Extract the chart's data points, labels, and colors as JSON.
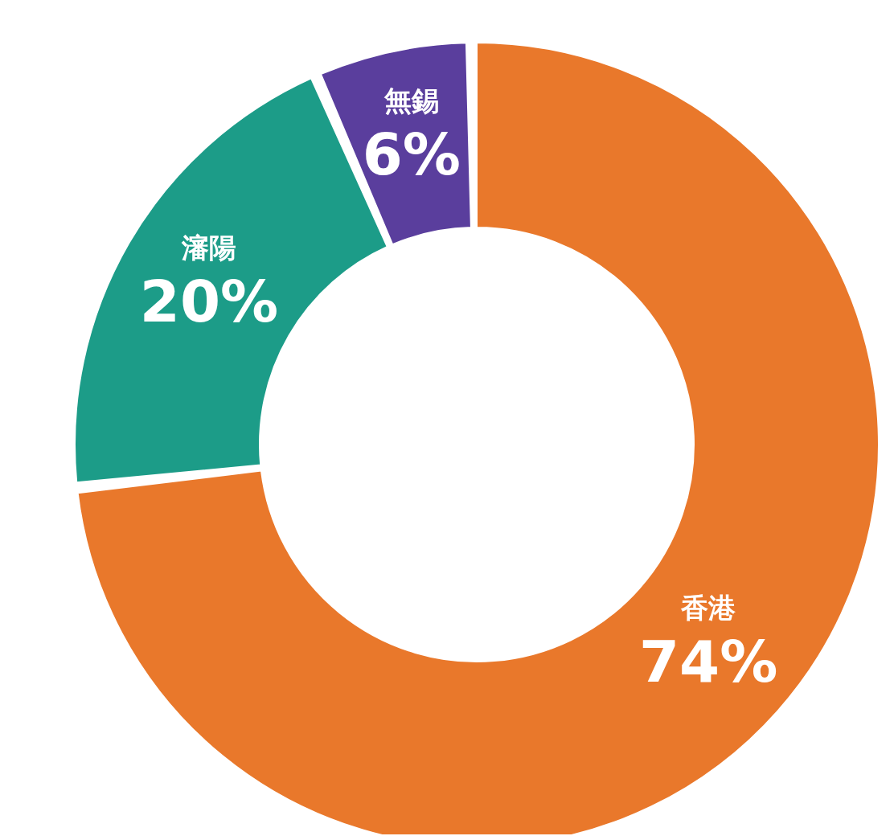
{
  "chart_data": {
    "type": "donut",
    "categories": [
      "香港",
      "瀋陽",
      "無錫"
    ],
    "values": [
      74,
      20,
      6
    ],
    "value_labels": [
      "74%",
      "20%",
      "6%"
    ],
    "colors": [
      "#e9782b",
      "#1c9c88",
      "#5a3e9d"
    ],
    "legend": false
  }
}
